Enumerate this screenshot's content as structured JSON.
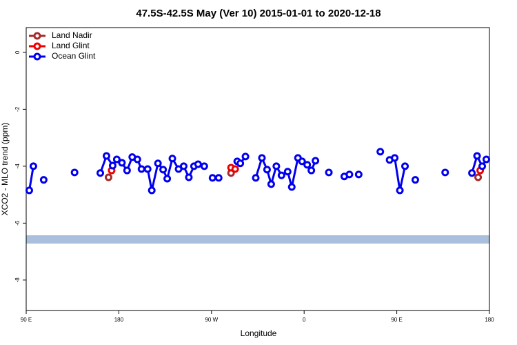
{
  "chart_data": {
    "type": "line",
    "title": "47.5S-42.5S May (Ver 10)   2015-01-01 to 2020-12-18",
    "xlabel": "Longitude",
    "ylabel": "XCO2 - MLO trend (ppm)",
    "xlim": [
      90,
      540
    ],
    "xticks": [
      {
        "value": 90,
        "label": "90 E"
      },
      {
        "value": 180,
        "label": "180"
      },
      {
        "value": 270,
        "label": "90 W"
      },
      {
        "value": 360,
        "label": "0"
      },
      {
        "value": 450,
        "label": "90 E"
      },
      {
        "value": 540,
        "label": "180"
      }
    ],
    "ylim": [
      -9.07,
      0.87
    ],
    "yticks": [
      0,
      -2,
      -4,
      -6,
      -8
    ],
    "legend": "top-left",
    "series": [
      {
        "name": "Land Nadir",
        "color": "#a52a2a",
        "x": [
          170,
          null,
          289,
          null,
          529
        ],
        "values": [
          -4.39,
          null,
          -4.24,
          null,
          -4.39
        ]
      },
      {
        "name": "Land Glint",
        "color": "#ee0000",
        "x": [
          173,
          null,
          289,
          293,
          null,
          531
        ],
        "values": [
          -4.15,
          null,
          -4.05,
          -4.1,
          null,
          -4.15
        ]
      },
      {
        "name": "Ocean Glint",
        "color": "#0000ee",
        "x": [
          93,
          97,
          null,
          107,
          null,
          137,
          null,
          162,
          168,
          174,
          178,
          183,
          188,
          193,
          198,
          202,
          208,
          212,
          218,
          223,
          227,
          232,
          238,
          243,
          248,
          253,
          257,
          263,
          null,
          271,
          277,
          null,
          295,
          298,
          303,
          null,
          313,
          319,
          324,
          328,
          333,
          338,
          344,
          348,
          354,
          358,
          363,
          367,
          371,
          null,
          384,
          null,
          399,
          404,
          null,
          413,
          null,
          434,
          null,
          443,
          448,
          453,
          458,
          null,
          468,
          null,
          497,
          null,
          523,
          528,
          533,
          537
        ],
        "values": [
          -4.85,
          -4.0,
          null,
          -4.48,
          null,
          -4.22,
          null,
          -4.24,
          -3.64,
          -3.98,
          -3.76,
          -3.88,
          -4.15,
          -3.68,
          -3.76,
          -4.1,
          -4.1,
          -4.85,
          -3.9,
          -4.12,
          -4.44,
          -3.73,
          -4.1,
          -4.0,
          -4.39,
          -4.0,
          -3.93,
          -4.0,
          null,
          -4.41,
          -4.41,
          null,
          -3.83,
          -3.9,
          -3.66,
          null,
          -4.41,
          -3.71,
          -4.12,
          -4.63,
          -4.0,
          -4.32,
          -4.19,
          -4.73,
          -3.71,
          -3.83,
          -3.95,
          -4.15,
          -3.81,
          null,
          -4.22,
          null,
          -4.36,
          -4.29,
          null,
          -4.29,
          null,
          -3.49,
          null,
          -3.78,
          -3.71,
          -4.85,
          -4.0,
          null,
          -4.48,
          null,
          -4.22,
          null,
          -4.24,
          -3.64,
          -4.0,
          -3.76
        ]
      }
    ]
  }
}
